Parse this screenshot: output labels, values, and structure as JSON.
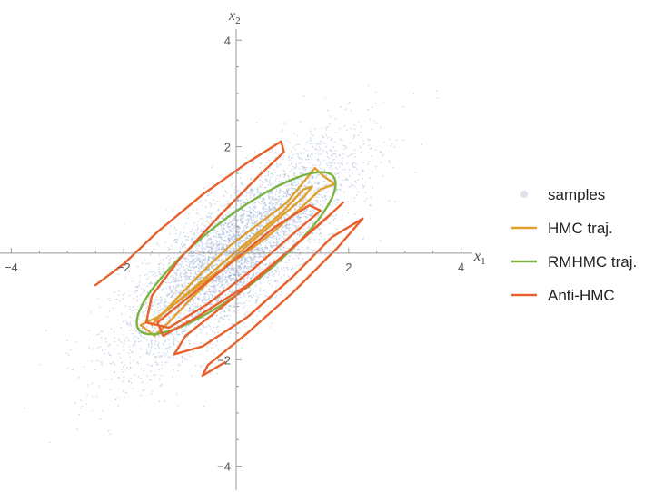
{
  "chart_data": {
    "type": "scatter",
    "title": "",
    "xlabel": {
      "base": "x",
      "sub": "1"
    },
    "ylabel": {
      "base": "x",
      "sub": "2"
    },
    "xlim": [
      -4.2,
      4.2
    ],
    "ylim": [
      -4.45,
      4.55
    ],
    "x_ticks": [
      {
        "value": -4,
        "label": "−4"
      },
      {
        "value": -2,
        "label": "−2"
      },
      {
        "value": 2,
        "label": "2"
      },
      {
        "value": 4,
        "label": "4"
      }
    ],
    "y_ticks": [
      {
        "value": -4,
        "label": "−4"
      },
      {
        "value": -2,
        "label": "−2"
      },
      {
        "value": 2,
        "label": "2"
      },
      {
        "value": 4,
        "label": "4"
      }
    ],
    "grid": false,
    "legend_position": "right",
    "series": [
      {
        "name": "samples",
        "kind": "scatter",
        "color": "#8fa6cf",
        "distribution": {
          "mean": [
            0,
            0
          ],
          "covariance": [
            [
              1,
              0.8
            ],
            [
              0.8,
              1
            ]
          ],
          "count": 5000
        }
      },
      {
        "name": "HMC traj.",
        "kind": "trajectory",
        "color": "#e0a030",
        "points": [
          [
            -1.5,
            -1.35
          ],
          [
            -1.1,
            -0.9
          ],
          [
            -0.6,
            -0.35
          ],
          [
            -0.1,
            0.15
          ],
          [
            0.4,
            0.55
          ],
          [
            0.9,
            0.95
          ],
          [
            1.25,
            1.4
          ],
          [
            1.4,
            1.6
          ],
          [
            1.55,
            1.45
          ],
          [
            1.75,
            1.3
          ],
          [
            1.5,
            1.2
          ],
          [
            1.15,
            0.85
          ],
          [
            0.6,
            0.35
          ],
          [
            0.1,
            -0.05
          ],
          [
            -0.4,
            -0.4
          ],
          [
            -0.9,
            -0.8
          ],
          [
            -1.4,
            -1.2
          ],
          [
            -1.7,
            -1.35
          ],
          [
            -1.45,
            -1.55
          ],
          [
            -1.2,
            -1.3
          ],
          [
            -0.8,
            -0.85
          ],
          [
            -0.3,
            -0.35
          ],
          [
            0.2,
            0.15
          ],
          [
            0.7,
            0.6
          ],
          [
            1.2,
            1.05
          ],
          [
            1.35,
            1.25
          ],
          [
            1.2,
            1.2
          ],
          [
            0.8,
            0.75
          ],
          [
            0.3,
            0.3
          ],
          [
            -0.2,
            -0.15
          ],
          [
            -0.7,
            -0.6
          ],
          [
            -1.2,
            -1.05
          ],
          [
            -1.45,
            -1.25
          ]
        ]
      },
      {
        "name": "RMHMC traj.",
        "kind": "trajectory",
        "ellipse": {
          "center": [
            0,
            0
          ],
          "semi_axes": [
            2.25,
            0.62
          ],
          "angle_deg": 40
        },
        "color": "#7cb342"
      },
      {
        "name": "Anti-HMC",
        "kind": "trajectory",
        "color": "#e8602c",
        "points": [
          [
            -2.5,
            -0.6
          ],
          [
            -2.0,
            -0.2
          ],
          [
            -1.4,
            0.4
          ],
          [
            -0.6,
            1.1
          ],
          [
            0.2,
            1.7
          ],
          [
            0.8,
            2.1
          ],
          [
            0.85,
            1.9
          ],
          [
            0.4,
            1.45
          ],
          [
            -0.3,
            0.7
          ],
          [
            -1.0,
            -0.1
          ],
          [
            -1.5,
            -0.8
          ],
          [
            -1.6,
            -1.3
          ],
          [
            -1.2,
            -1.4
          ],
          [
            -0.5,
            -0.95
          ],
          [
            0.3,
            -0.3
          ],
          [
            1.0,
            0.35
          ],
          [
            1.5,
            0.8
          ],
          [
            1.3,
            0.9
          ],
          [
            0.7,
            0.5
          ],
          [
            0.0,
            -0.1
          ],
          [
            -0.7,
            -0.7
          ],
          [
            -1.4,
            -1.3
          ],
          [
            -1.3,
            -1.55
          ],
          [
            -0.7,
            -1.2
          ],
          [
            0.2,
            -0.6
          ],
          [
            1.0,
            0.1
          ],
          [
            1.6,
            0.65
          ],
          [
            1.9,
            0.95
          ],
          [
            1.7,
            0.75
          ],
          [
            1.1,
            0.2
          ],
          [
            0.4,
            -0.45
          ],
          [
            -0.3,
            -1.05
          ],
          [
            -0.9,
            -1.55
          ],
          [
            -1.1,
            -1.9
          ],
          [
            -0.6,
            -1.75
          ],
          [
            0.2,
            -1.2
          ],
          [
            1.0,
            -0.45
          ],
          [
            1.7,
            0.3
          ],
          [
            2.25,
            0.65
          ],
          [
            1.8,
            0.1
          ],
          [
            1.0,
            -0.75
          ],
          [
            0.2,
            -1.5
          ],
          [
            -0.5,
            -2.1
          ],
          [
            -0.6,
            -2.3
          ],
          [
            -0.2,
            -2.05
          ]
        ]
      }
    ]
  }
}
